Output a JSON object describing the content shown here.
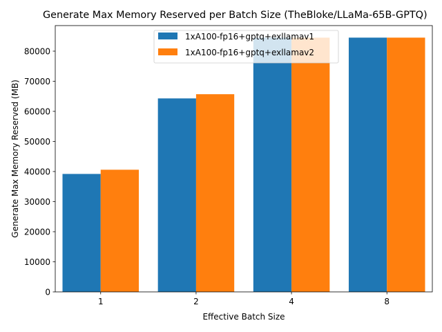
{
  "chart_data": {
    "type": "bar",
    "title": "Generate Max Memory Reserved per Batch Size (TheBloke/LLaMa-65B-GPTQ)",
    "xlabel": "Effective Batch Size",
    "ylabel": "Generate Max Memory Reserved (MB)",
    "categories": [
      "1",
      "2",
      "4",
      "8"
    ],
    "ylim": [
      0,
      88500
    ],
    "yticks": [
      0,
      10000,
      20000,
      30000,
      40000,
      50000,
      60000,
      70000,
      80000
    ],
    "grid": false,
    "legend_position": "top-center",
    "series": [
      {
        "name": "1xA100-fp16+gptq+exllamav1",
        "color": "#1f77b4",
        "values": [
          39200,
          64300,
          84500,
          84500
        ]
      },
      {
        "name": "1xA100-fp16+gptq+exllamav2",
        "color": "#ff7f0e",
        "values": [
          40600,
          65700,
          84500,
          84500
        ]
      }
    ]
  }
}
